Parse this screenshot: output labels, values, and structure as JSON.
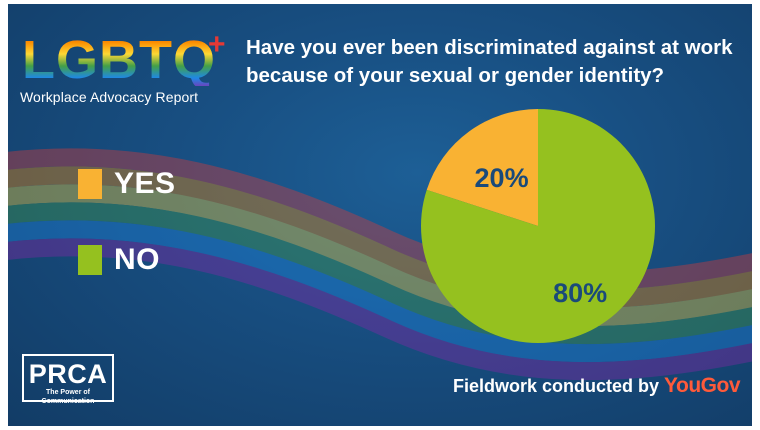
{
  "branding": {
    "logo_text": "LGBTQ+",
    "subtitle": "Workplace Advocacy Report",
    "org_name": "PRCA",
    "org_tagline": "The Power of Communication",
    "fieldwork_prefix": "Fieldwork conducted by",
    "fieldwork_brand": "YouGov"
  },
  "colors": {
    "background": "#184f82",
    "yes": "#f9b233",
    "no": "#95c11f",
    "label_text": "#1a4a7a",
    "brand_accent": "#ff5a3a"
  },
  "chart_data": {
    "type": "pie",
    "title": "Have you ever been discriminated against at work because of your sexual or gender identity?",
    "categories": [
      "YES",
      "NO"
    ],
    "values": [
      20,
      80
    ],
    "value_labels": [
      "20%",
      "80%"
    ],
    "colors": [
      "#f9b233",
      "#95c11f"
    ],
    "legend_position": "left"
  }
}
